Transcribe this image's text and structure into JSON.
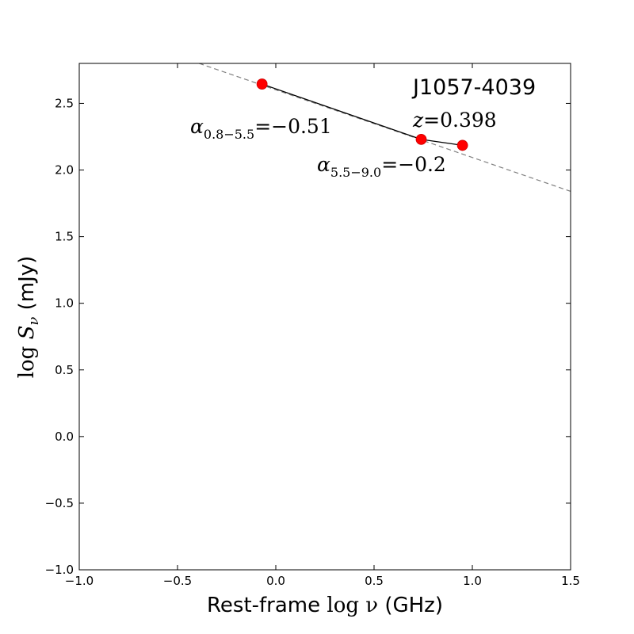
{
  "chart_data": {
    "type": "line",
    "x_axis": {
      "label_prefix": "Rest-frame",
      "label_math": "log ν",
      "label_suffix": "(GHz)",
      "lim": [
        -1.0,
        1.5
      ],
      "ticks": [
        -1.0,
        -0.5,
        0.0,
        0.5,
        1.0,
        1.5
      ],
      "tick_labels": [
        "−1.0",
        "−0.5",
        "0.0",
        "0.5",
        "1.0",
        "1.5"
      ]
    },
    "y_axis": {
      "label_math_log": "log",
      "label_math_S": "S",
      "label_math_sub": "ν",
      "label_suffix": "(mJy)",
      "lim": [
        -1.0,
        2.8
      ],
      "ticks": [
        -1.0,
        -0.5,
        0.0,
        0.5,
        1.0,
        1.5,
        2.0,
        2.5
      ],
      "tick_labels": [
        "−1.0",
        "−0.5",
        "0.0",
        "0.5",
        "1.0",
        "1.5",
        "2.0",
        "2.5"
      ]
    },
    "grid": false,
    "series": [
      {
        "kind": "points",
        "color": "#ff0000",
        "x": [
          -0.07,
          0.74,
          0.95
        ],
        "y": [
          2.645,
          2.23,
          2.185
        ]
      },
      {
        "kind": "fit-line",
        "style": "dashed",
        "color": "#808080",
        "x": [
          -0.39,
          1.5
        ],
        "y": [
          2.8,
          1.84
        ]
      }
    ],
    "segments": [
      {
        "from": 0,
        "to": 1
      },
      {
        "from": 1,
        "to": 2
      }
    ],
    "annotations": {
      "source_name": "J1057-4039",
      "redshift_var": "z",
      "redshift_eq": "=0.398",
      "alpha1_sym": "α",
      "alpha1_sub": "0.8−5.5",
      "alpha1_eq": "=−0.51",
      "alpha2_sym": "α",
      "alpha2_sub": "5.5−9.0",
      "alpha2_eq": "=−0.2"
    }
  }
}
